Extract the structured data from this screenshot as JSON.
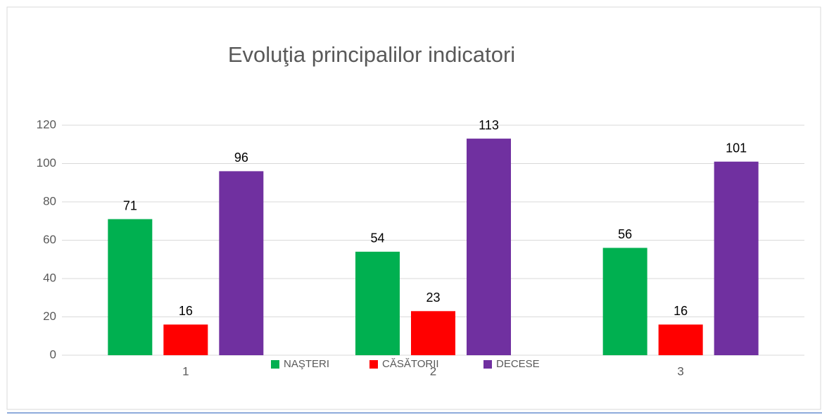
{
  "chart_data": {
    "type": "bar",
    "title": "Evoluţia principalilor indicatori",
    "categories": [
      "1",
      "2",
      "3"
    ],
    "series": [
      {
        "name": "NAŞTERI",
        "color": "#00b050",
        "values": [
          71,
          54,
          56
        ]
      },
      {
        "name": "CĂSĂTORII",
        "color": "#ff0000",
        "values": [
          16,
          23,
          16
        ]
      },
      {
        "name": "DECESE",
        "color": "#7030a0",
        "values": [
          96,
          113,
          101
        ]
      }
    ],
    "ylim": [
      0,
      120
    ],
    "yticks": [
      0,
      20,
      40,
      60,
      80,
      100,
      120
    ],
    "grid": true,
    "legend": "bottom",
    "data_labels": true
  }
}
